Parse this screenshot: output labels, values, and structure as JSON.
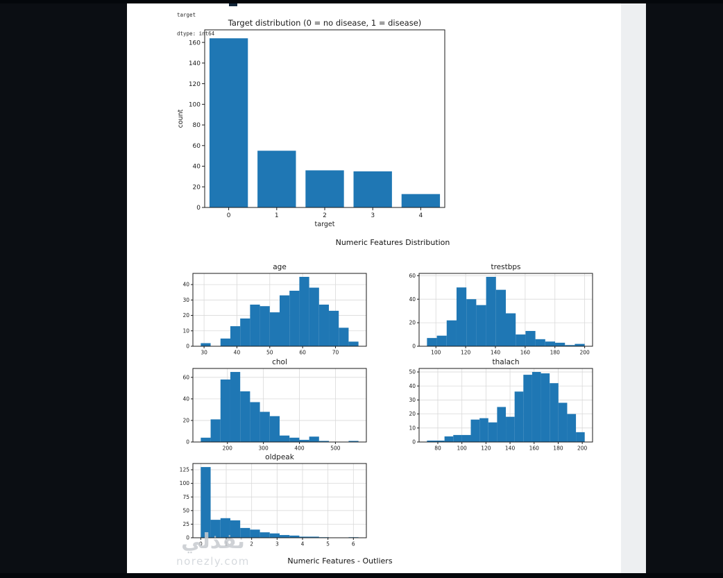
{
  "theme": {
    "canvas_bg": "#0b0e13",
    "page_bg": "#ffffff",
    "strip_bg": "#edeff1",
    "bar_color": "#1f77b4",
    "grid_color": "#d9d9d9",
    "text_color": "#1a1a1a",
    "watermark_color": "#c7cbd0"
  },
  "console": {
    "line1": "target",
    "line2": "dtype: int64"
  },
  "sections": {
    "numeric_distribution": "Numeric Features Distribution",
    "outliers": "Numeric Features - Outliers"
  },
  "watermark": {
    "arabic": "نفذلي",
    "latin": "norezly.com"
  },
  "chart_data": [
    {
      "id": "target",
      "type": "bar",
      "title": "Target distribution (0 = no disease, 1 = disease)",
      "xlabel": "target",
      "ylabel": "count",
      "categories": [
        "0",
        "1",
        "2",
        "3",
        "4"
      ],
      "values": [
        164,
        55,
        36,
        35,
        13
      ],
      "yticks": [
        0,
        20,
        40,
        60,
        80,
        100,
        120,
        140,
        160
      ],
      "ylim": [
        0,
        172.2
      ],
      "grid": false
    },
    {
      "id": "age",
      "type": "histogram",
      "title": "age",
      "bin_start": 29,
      "bin_width": 3,
      "values": [
        2,
        0,
        5,
        13,
        18,
        27,
        26,
        22,
        33,
        36,
        45,
        38,
        27,
        23,
        12,
        3
      ],
      "xticks": [
        30,
        40,
        50,
        60,
        70
      ],
      "xlim": [
        26.6,
        79.4
      ],
      "yticks": [
        0,
        10,
        20,
        30,
        40
      ],
      "ylim": [
        0,
        47.25
      ],
      "grid": true
    },
    {
      "id": "trestbps",
      "type": "histogram",
      "title": "trestbps",
      "bin_start": 94,
      "bin_width": 6.625,
      "values": [
        7,
        9,
        22,
        50,
        40,
        35,
        59,
        48,
        28,
        10,
        13,
        6,
        4,
        3,
        1,
        2
      ],
      "xticks": [
        100,
        120,
        140,
        160,
        180,
        200
      ],
      "xlim": [
        88.7,
        205.3
      ],
      "yticks": [
        0,
        20,
        40,
        60
      ],
      "ylim": [
        0,
        61.95
      ],
      "grid": true
    },
    {
      "id": "chol",
      "type": "histogram",
      "title": "chol",
      "bin_start": 126,
      "bin_width": 27.375,
      "values": [
        4,
        21,
        58,
        65,
        47,
        37,
        28,
        24,
        6,
        4,
        2,
        5,
        1,
        0,
        0,
        1
      ],
      "xticks": [
        200,
        300,
        400,
        500
      ],
      "xlim": [
        104.1,
        585.9
      ],
      "yticks": [
        0,
        20,
        40,
        60
      ],
      "ylim": [
        0,
        68.25
      ],
      "grid": true
    },
    {
      "id": "thalach",
      "type": "histogram",
      "title": "thalach",
      "bin_start": 71,
      "bin_width": 7.28,
      "values": [
        1,
        1,
        4,
        5,
        5,
        16,
        17,
        14,
        25,
        18,
        36,
        48,
        50,
        49,
        42,
        28,
        20,
        7
      ],
      "xticks": [
        80,
        100,
        120,
        140,
        160,
        180,
        200
      ],
      "xlim": [
        64.45,
        208.55
      ],
      "yticks": [
        0,
        10,
        20,
        30,
        40,
        50
      ],
      "ylim": [
        0,
        52.5
      ],
      "grid": true
    },
    {
      "id": "oldpeak",
      "type": "histogram",
      "title": "oldpeak",
      "bin_start": 0,
      "bin_width": 0.3875,
      "values": [
        130,
        33,
        36,
        32,
        18,
        15,
        10,
        8,
        5,
        4,
        2,
        2,
        1,
        0,
        0,
        1
      ],
      "xticks": [
        0,
        1,
        2,
        3,
        4,
        5,
        6
      ],
      "xlim": [
        -0.31,
        6.51
      ],
      "yticks": [
        0,
        25,
        50,
        75,
        100,
        125
      ],
      "ylim": [
        0,
        136.5
      ],
      "grid": true
    }
  ]
}
